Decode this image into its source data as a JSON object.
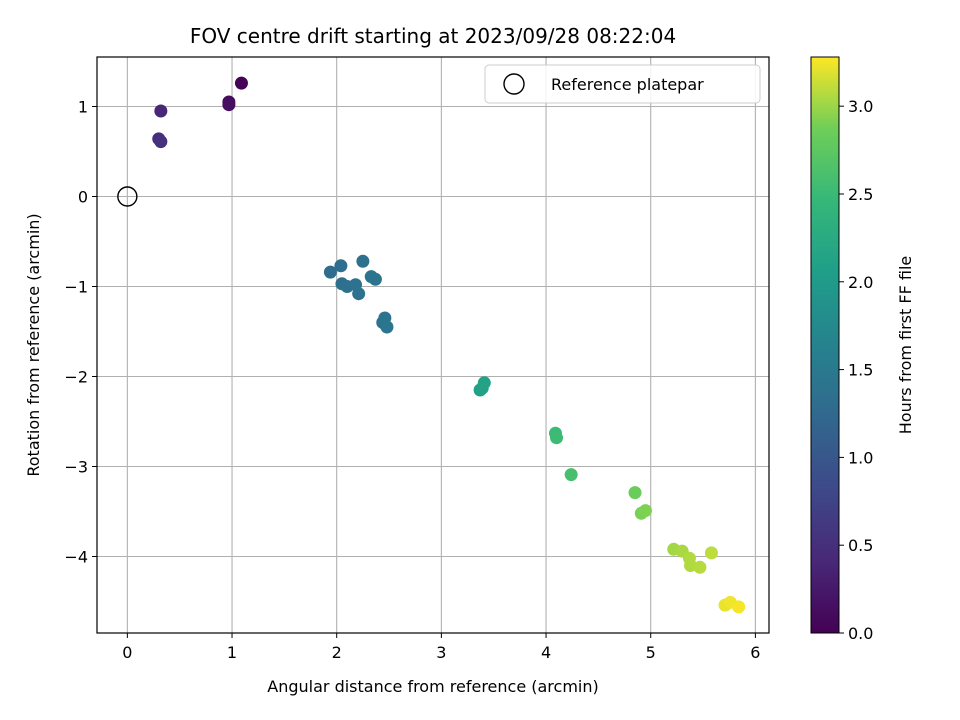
{
  "chart_data": {
    "type": "scatter",
    "title": "FOV centre drift starting at 2023/09/28 08:22:04",
    "xlabel": "Angular distance from reference (arcmin)",
    "ylabel": "Rotation from reference (arcmin)",
    "xlim": [
      -0.29,
      6.13
    ],
    "ylim": [
      -4.85,
      1.55
    ],
    "xticks": [
      0,
      1,
      2,
      3,
      4,
      5,
      6
    ],
    "xtick_labels": [
      "0",
      "1",
      "2",
      "3",
      "4",
      "5",
      "6"
    ],
    "yticks": [
      1,
      0,
      -1,
      -2,
      -3,
      -4
    ],
    "ytick_labels": [
      "1",
      "0",
      "−1",
      "−2",
      "−3",
      "−4"
    ],
    "grid": true,
    "legend": {
      "position": "upper right",
      "entries": [
        "Reference platepar"
      ]
    },
    "reference_point": {
      "label": "Reference platepar",
      "x": 0,
      "y": 0
    },
    "colorbar": {
      "label": "Hours from first FF file",
      "colormap": "viridis",
      "range": [
        0.0,
        3.28
      ],
      "ticks": [
        0.0,
        0.5,
        1.0,
        1.5,
        2.0,
        2.5,
        3.0
      ],
      "tick_labels": [
        "0.0",
        "0.5",
        "1.0",
        "1.5",
        "2.0",
        "2.5",
        "3.0"
      ]
    },
    "points": [
      {
        "x": 1.09,
        "y": 1.26,
        "c": 0.02
      },
      {
        "x": 0.97,
        "y": 1.05,
        "c": 0.1
      },
      {
        "x": 0.97,
        "y": 1.02,
        "c": 0.14
      },
      {
        "x": 0.32,
        "y": 0.95,
        "c": 0.4
      },
      {
        "x": 0.3,
        "y": 0.64,
        "c": 0.48
      },
      {
        "x": 0.32,
        "y": 0.61,
        "c": 0.52
      },
      {
        "x": 1.94,
        "y": -0.84,
        "c": 1.3
      },
      {
        "x": 2.04,
        "y": -0.77,
        "c": 1.32
      },
      {
        "x": 2.05,
        "y": -0.97,
        "c": 1.34
      },
      {
        "x": 2.1,
        "y": -1.0,
        "c": 1.36
      },
      {
        "x": 2.18,
        "y": -0.98,
        "c": 1.38
      },
      {
        "x": 2.21,
        "y": -1.08,
        "c": 1.38
      },
      {
        "x": 2.25,
        "y": -0.72,
        "c": 1.36
      },
      {
        "x": 2.33,
        "y": -0.89,
        "c": 1.4
      },
      {
        "x": 2.37,
        "y": -0.92,
        "c": 1.4
      },
      {
        "x": 2.44,
        "y": -1.4,
        "c": 1.42
      },
      {
        "x": 2.46,
        "y": -1.35,
        "c": 1.42
      },
      {
        "x": 2.48,
        "y": -1.45,
        "c": 1.44
      },
      {
        "x": 3.37,
        "y": -2.15,
        "c": 2.08
      },
      {
        "x": 3.39,
        "y": -2.13,
        "c": 2.1
      },
      {
        "x": 3.41,
        "y": -2.07,
        "c": 2.12
      },
      {
        "x": 4.09,
        "y": -2.63,
        "c": 2.5
      },
      {
        "x": 4.1,
        "y": -2.68,
        "c": 2.52
      },
      {
        "x": 4.24,
        "y": -3.09,
        "c": 2.6
      },
      {
        "x": 4.85,
        "y": -3.29,
        "c": 2.84
      },
      {
        "x": 4.91,
        "y": -3.52,
        "c": 2.9
      },
      {
        "x": 4.95,
        "y": -3.49,
        "c": 2.92
      },
      {
        "x": 5.22,
        "y": -3.92,
        "c": 3.02
      },
      {
        "x": 5.3,
        "y": -3.94,
        "c": 3.04
      },
      {
        "x": 5.37,
        "y": -4.02,
        "c": 3.06
      },
      {
        "x": 5.38,
        "y": -4.1,
        "c": 3.06
      },
      {
        "x": 5.47,
        "y": -4.12,
        "c": 3.08
      },
      {
        "x": 5.58,
        "y": -3.96,
        "c": 3.1
      },
      {
        "x": 5.71,
        "y": -4.54,
        "c": 3.22
      },
      {
        "x": 5.76,
        "y": -4.51,
        "c": 3.24
      },
      {
        "x": 5.84,
        "y": -4.56,
        "c": 3.26
      }
    ]
  }
}
